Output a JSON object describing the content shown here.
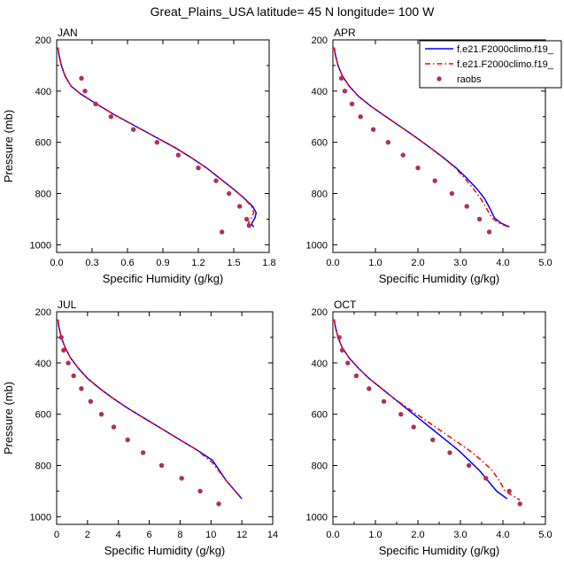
{
  "title": "Great_Plains_USA  latitude= 45 N longitude= 100 W",
  "legend": {
    "placement": "top-right",
    "entries": [
      {
        "label": "f.e21.F2000climo.f19_",
        "color": "#0000ff",
        "style": "solid"
      },
      {
        "label": "f.e21.F2000climo.f19_",
        "color": "#ff0000",
        "style": "dashed"
      },
      {
        "label": "raobs",
        "color": "#b0305a",
        "style": "dots"
      }
    ]
  },
  "chart_data": [
    {
      "type": "line",
      "title": "JAN",
      "xlabel": "Specific Humidity (g/kg)",
      "ylabel": "Pressure (mb)",
      "xlim": [
        0,
        1.8
      ],
      "ylim": [
        200,
        1030
      ],
      "y_inverted": true,
      "xticks": [
        0.0,
        0.3,
        0.6,
        0.9,
        1.2,
        1.5,
        1.8
      ],
      "xtick_labels": [
        "0.0",
        "0.3",
        "0.6",
        "0.9",
        "1.2",
        "1.5",
        "1.8"
      ],
      "yticks": [
        200,
        400,
        600,
        800,
        1000
      ],
      "series": [
        {
          "color": "#0000ff",
          "style": "solid",
          "x": [
            0.01,
            0.02,
            0.04,
            0.07,
            0.12,
            0.2,
            0.32,
            0.48,
            0.66,
            0.84,
            1.0,
            1.14,
            1.27,
            1.38,
            1.49,
            1.58,
            1.66,
            1.69,
            1.68,
            1.66,
            1.65,
            1.67
          ],
          "y": [
            230,
            260,
            300,
            340,
            380,
            410,
            445,
            490,
            535,
            580,
            620,
            660,
            700,
            740,
            780,
            815,
            850,
            875,
            895,
            910,
            920,
            930
          ]
        },
        {
          "color": "#ff0000",
          "style": "dashed",
          "x": [
            0.01,
            0.02,
            0.04,
            0.07,
            0.12,
            0.2,
            0.32,
            0.48,
            0.66,
            0.84,
            1.0,
            1.14,
            1.27,
            1.38,
            1.49,
            1.58,
            1.65,
            1.67,
            1.65,
            1.63,
            1.62,
            1.63
          ],
          "y": [
            230,
            260,
            300,
            340,
            380,
            410,
            445,
            490,
            535,
            580,
            620,
            660,
            700,
            740,
            780,
            815,
            850,
            875,
            895,
            910,
            920,
            930
          ]
        },
        {
          "color": "#b0305a",
          "style": "dots",
          "x": [
            0.21,
            0.24,
            0.33,
            0.46,
            0.65,
            0.85,
            1.03,
            1.2,
            1.35,
            1.46,
            1.55,
            1.61,
            1.63,
            1.4
          ],
          "y": [
            350,
            400,
            450,
            500,
            550,
            600,
            650,
            700,
            750,
            800,
            850,
            900,
            925,
            950
          ]
        }
      ]
    },
    {
      "type": "line",
      "title": "APR",
      "xlabel": "Specific Humidity (g/kg)",
      "ylabel": "",
      "xlim": [
        0,
        5.0
      ],
      "ylim": [
        200,
        1030
      ],
      "y_inverted": true,
      "xticks": [
        0.0,
        1.0,
        2.0,
        3.0,
        4.0,
        5.0
      ],
      "xtick_labels": [
        "0.0",
        "1.0",
        "2.0",
        "3.0",
        "4.0",
        "5.0"
      ],
      "yticks": [
        200,
        400,
        600,
        800,
        1000
      ],
      "series": [
        {
          "color": "#0000ff",
          "style": "solid",
          "x": [
            0.03,
            0.06,
            0.12,
            0.22,
            0.38,
            0.6,
            0.9,
            1.25,
            1.6,
            1.95,
            2.28,
            2.6,
            2.9,
            3.15,
            3.38,
            3.57,
            3.7,
            3.8,
            3.95,
            4.15
          ],
          "y": [
            230,
            260,
            300,
            340,
            380,
            420,
            460,
            500,
            540,
            580,
            620,
            660,
            700,
            740,
            780,
            820,
            860,
            895,
            915,
            930
          ]
        },
        {
          "color": "#ff0000",
          "style": "dashed",
          "x": [
            0.03,
            0.06,
            0.12,
            0.22,
            0.38,
            0.6,
            0.9,
            1.25,
            1.6,
            1.95,
            2.28,
            2.6,
            2.88,
            3.1,
            3.3,
            3.48,
            3.62,
            3.74,
            3.9,
            4.12
          ],
          "y": [
            230,
            260,
            300,
            340,
            380,
            420,
            460,
            500,
            540,
            580,
            620,
            660,
            700,
            740,
            780,
            820,
            860,
            895,
            915,
            930
          ]
        },
        {
          "color": "#b0305a",
          "style": "dots",
          "x": [
            0.2,
            0.28,
            0.45,
            0.65,
            0.95,
            1.3,
            1.65,
            2.0,
            2.4,
            2.8,
            3.15,
            3.45,
            3.68
          ],
          "y": [
            350,
            400,
            450,
            500,
            550,
            600,
            650,
            700,
            750,
            800,
            850,
            900,
            950
          ]
        }
      ]
    },
    {
      "type": "line",
      "title": "JUL",
      "xlabel": "Specific Humidity (g/kg)",
      "ylabel": "Pressure (mb)",
      "xlim": [
        0,
        14
      ],
      "ylim": [
        200,
        1030
      ],
      "y_inverted": true,
      "xticks": [
        0,
        2,
        4,
        6,
        8,
        10,
        12,
        14
      ],
      "xtick_labels": [
        "0",
        "2",
        "4",
        "6",
        "8",
        "10",
        "12",
        "14"
      ],
      "yticks": [
        200,
        400,
        600,
        800,
        1000
      ],
      "series": [
        {
          "color": "#0000ff",
          "style": "solid",
          "x": [
            0.08,
            0.15,
            0.3,
            0.55,
            0.9,
            1.4,
            2.0,
            2.8,
            3.7,
            4.7,
            5.8,
            6.9,
            8.0,
            9.1,
            10.1,
            11.0,
            12.0
          ],
          "y": [
            230,
            260,
            300,
            340,
            380,
            420,
            460,
            500,
            540,
            580,
            620,
            660,
            700,
            740,
            780,
            860,
            930
          ]
        },
        {
          "color": "#ff0000",
          "style": "dashed",
          "x": [
            0.08,
            0.15,
            0.3,
            0.55,
            0.9,
            1.4,
            2.0,
            2.8,
            3.7,
            4.7,
            5.8,
            6.9,
            8.0,
            9.1,
            10.1,
            11.0,
            12.0
          ],
          "y": [
            230,
            260,
            300,
            340,
            380,
            420,
            460,
            500,
            540,
            580,
            620,
            660,
            700,
            740,
            790,
            860,
            930
          ]
        },
        {
          "color": "#b0305a",
          "style": "dots",
          "x": [
            0.3,
            0.45,
            0.75,
            1.1,
            1.6,
            2.2,
            2.9,
            3.7,
            4.6,
            5.6,
            6.8,
            8.1,
            9.3,
            10.5
          ],
          "y": [
            300,
            350,
            400,
            450,
            500,
            550,
            600,
            650,
            700,
            750,
            800,
            850,
            900,
            950
          ]
        }
      ]
    },
    {
      "type": "line",
      "title": "OCT",
      "xlabel": "Specific Humidity (g/kg)",
      "ylabel": "",
      "xlim": [
        0,
        5.0
      ],
      "ylim": [
        200,
        1030
      ],
      "y_inverted": true,
      "xticks": [
        0.0,
        0.5,
        1.0,
        1.5,
        2.0,
        2.5,
        3.0,
        3.5,
        4.0,
        4.5,
        5.0
      ],
      "xtick_labels": [
        "0.0",
        "",
        "1.0",
        "",
        "2.0",
        "",
        "3.0",
        "",
        "4.0",
        "",
        "5.0"
      ],
      "yticks": [
        200,
        400,
        600,
        800,
        1000
      ],
      "series": [
        {
          "color": "#0000ff",
          "style": "solid",
          "x": [
            0.03,
            0.06,
            0.12,
            0.22,
            0.38,
            0.6,
            0.85,
            1.15,
            1.45,
            1.75,
            2.05,
            2.35,
            2.65,
            2.95,
            3.2,
            3.45,
            3.65,
            3.85,
            4.1
          ],
          "y": [
            230,
            260,
            300,
            340,
            380,
            420,
            460,
            500,
            540,
            580,
            620,
            660,
            700,
            740,
            780,
            820,
            860,
            900,
            930
          ]
        },
        {
          "color": "#ff0000",
          "style": "dashed",
          "x": [
            0.03,
            0.06,
            0.12,
            0.22,
            0.38,
            0.6,
            0.85,
            1.15,
            1.45,
            1.8,
            2.15,
            2.5,
            2.85,
            3.2,
            3.5,
            3.75,
            3.92,
            4.05,
            4.4
          ],
          "y": [
            230,
            260,
            300,
            340,
            380,
            420,
            460,
            500,
            540,
            580,
            620,
            660,
            700,
            740,
            780,
            820,
            860,
            900,
            935
          ]
        },
        {
          "color": "#b0305a",
          "style": "dots",
          "x": [
            0.15,
            0.22,
            0.35,
            0.55,
            0.85,
            1.2,
            1.6,
            1.9,
            2.35,
            2.75,
            3.2,
            3.6,
            4.15,
            4.4
          ],
          "y": [
            300,
            350,
            400,
            450,
            500,
            550,
            600,
            650,
            700,
            750,
            800,
            850,
            900,
            950
          ]
        }
      ]
    }
  ]
}
